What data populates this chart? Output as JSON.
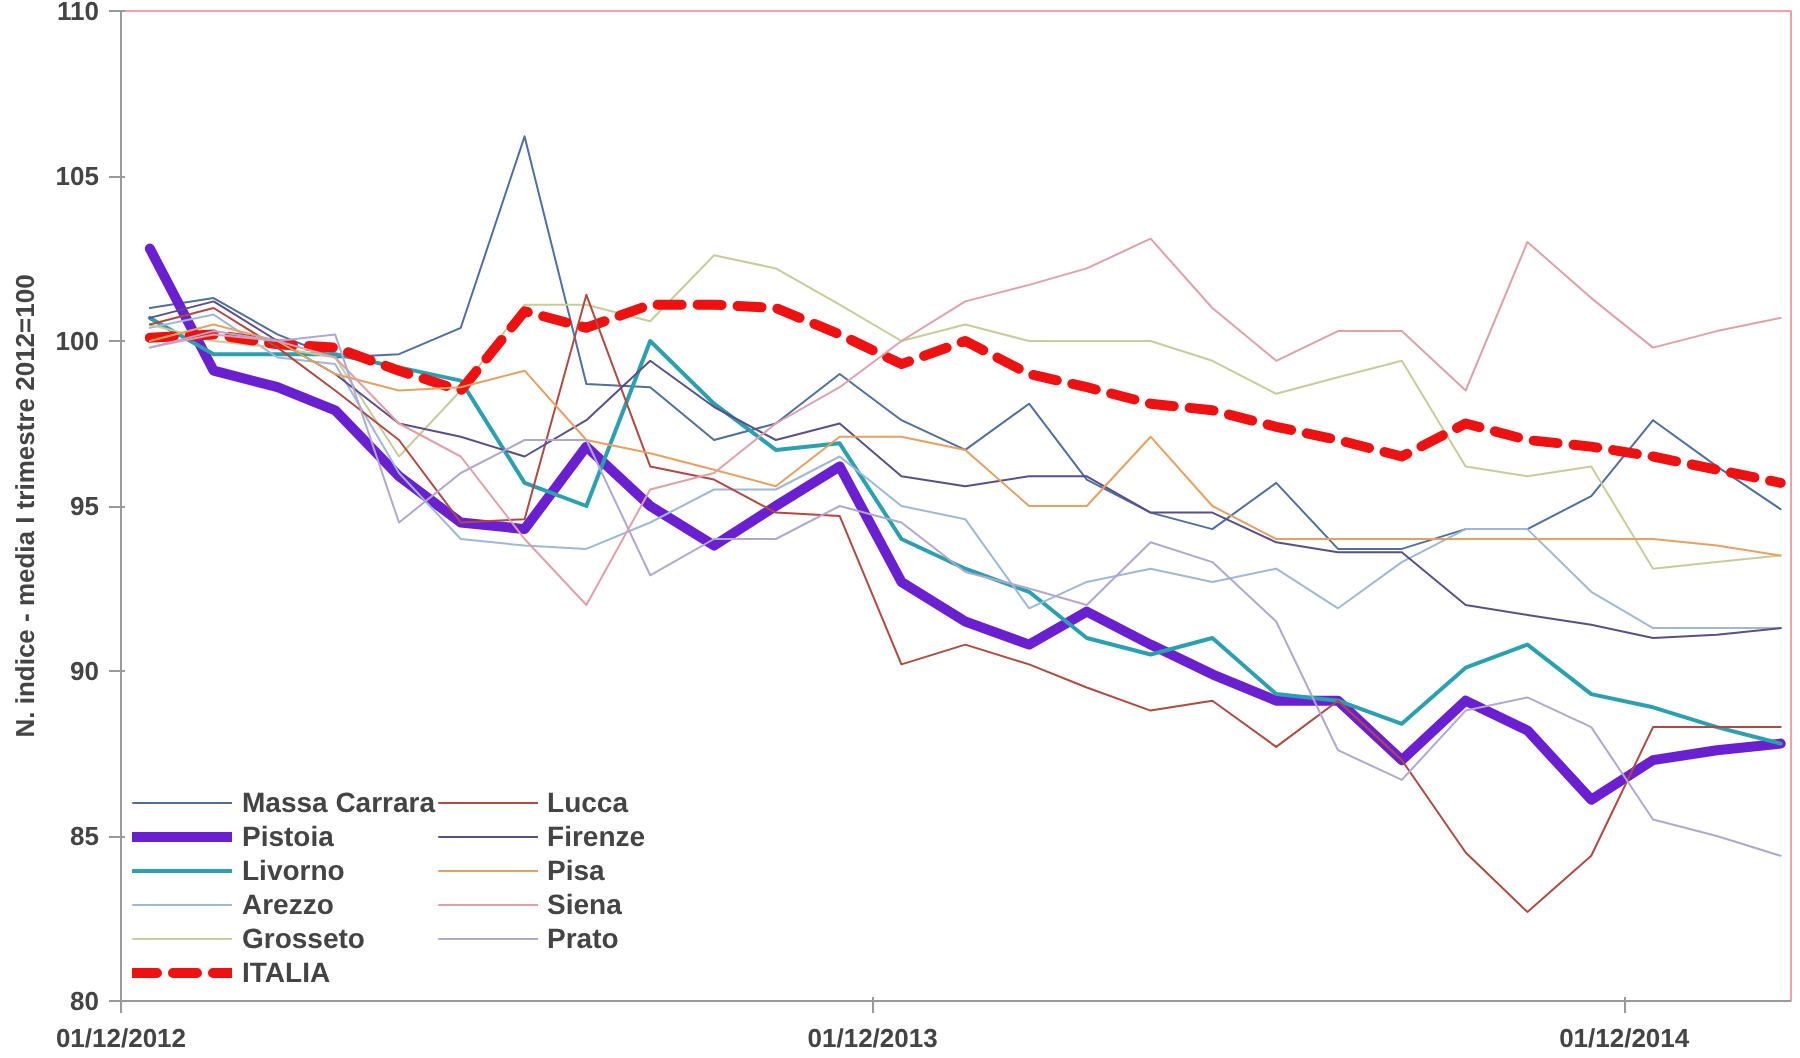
{
  "chart_data": {
    "type": "line",
    "ylabel": "N. indice - media I trimestre 2012=100",
    "x": [
      "2012-12-15",
      "2013-01-15",
      "2013-02-15",
      "2013-03-15",
      "2013-04-15",
      "2013-05-15",
      "2013-06-15",
      "2013-07-15",
      "2013-08-15",
      "2013-09-15",
      "2013-10-15",
      "2013-11-15",
      "2013-12-15",
      "2014-01-15",
      "2014-02-15",
      "2014-03-15",
      "2014-04-15",
      "2014-05-15",
      "2014-06-15",
      "2014-07-15",
      "2014-08-15",
      "2014-09-15",
      "2014-10-15",
      "2014-11-15",
      "2014-12-15",
      "2015-01-15",
      "2015-02-15"
    ],
    "xlim": [
      "2012-12-01",
      "2015-02-20"
    ],
    "xticks": [
      {
        "value": "2012-12-01",
        "label": "01/12/2012"
      },
      {
        "value": "2013-12-01",
        "label": "01/12/2013"
      },
      {
        "value": "2014-12-01",
        "label": "01/12/2014"
      }
    ],
    "ylim": [
      80,
      110
    ],
    "yticks": [
      80,
      85,
      90,
      95,
      100,
      105,
      110
    ],
    "grid": false,
    "legend": "bottom left",
    "marker": "none",
    "line_style": "solid",
    "series": [
      {
        "name": "Massa Carrara",
        "color": "#4f6fa0",
        "values": [
          101.0,
          101.3,
          100.2,
          99.5,
          99.6,
          100.4,
          106.2,
          98.7,
          98.6,
          97.0,
          97.5,
          99.0,
          97.6,
          96.7,
          98.1,
          95.8,
          94.8,
          94.3,
          95.7,
          93.7,
          93.7,
          94.3,
          94.3,
          95.3,
          97.6,
          96.2,
          94.9
        ]
      },
      {
        "name": "Pistoia",
        "color": "#6a1fd0",
        "values": [
          102.8,
          99.1,
          98.6,
          97.9,
          95.9,
          94.5,
          94.3,
          96.8,
          95.0,
          93.8,
          95.0,
          96.2,
          92.7,
          91.5,
          90.8,
          91.8,
          90.8,
          89.9,
          89.1,
          89.1,
          87.3,
          89.1,
          88.2,
          86.1,
          87.3,
          87.6,
          87.8
        ]
      },
      {
        "name": "Livorno",
        "color": "#2aa0b0",
        "values": [
          100.7,
          99.6,
          99.6,
          99.6,
          99.2,
          98.8,
          95.7,
          95.0,
          100.0,
          98.1,
          96.7,
          96.9,
          94.0,
          93.1,
          92.4,
          91.0,
          90.5,
          91.0,
          89.3,
          89.1,
          88.4,
          90.1,
          90.8,
          89.3,
          88.9,
          88.3,
          87.8
        ]
      },
      {
        "name": "Arezzo",
        "color": "#9fb8d8",
        "values": [
          100.4,
          100.8,
          99.5,
          99.3,
          96.0,
          94.0,
          93.8,
          93.7,
          94.5,
          95.5,
          95.5,
          96.5,
          95.0,
          94.6,
          91.9,
          92.7,
          93.1,
          92.7,
          93.1,
          91.9,
          93.3,
          94.3,
          94.3,
          92.4,
          91.3,
          91.3,
          91.3
        ]
      },
      {
        "name": "Grosseto",
        "color": "#c8cc98",
        "values": [
          100.5,
          100.0,
          99.8,
          99.5,
          96.5,
          98.5,
          101.1,
          101.1,
          100.6,
          102.6,
          102.2,
          101.1,
          100.0,
          100.5,
          100.0,
          100.0,
          100.0,
          99.4,
          98.4,
          98.9,
          99.4,
          96.2,
          95.9,
          96.2,
          93.1,
          93.3,
          93.5
        ]
      },
      {
        "name": "ITALIA",
        "color": "#ee1111",
        "line_style": "dashed",
        "values": [
          100.1,
          100.2,
          99.9,
          99.8,
          99.1,
          98.5,
          100.9,
          100.4,
          101.1,
          101.1,
          101.0,
          100.2,
          99.3,
          100.0,
          99.0,
          98.6,
          98.1,
          97.9,
          97.4,
          97.0,
          96.5,
          97.5,
          97.0,
          96.8,
          96.5,
          96.1,
          95.7
        ]
      },
      {
        "name": "Lucca",
        "color": "#b04a40",
        "values": [
          100.5,
          101.0,
          99.8,
          98.5,
          97.0,
          94.5,
          94.6,
          101.4,
          96.2,
          95.8,
          94.8,
          94.7,
          90.2,
          90.8,
          90.2,
          89.5,
          88.8,
          89.1,
          87.7,
          89.1,
          87.3,
          84.5,
          82.7,
          84.4,
          88.3,
          88.3,
          88.3
        ]
      },
      {
        "name": "Firenze",
        "color": "#5a4f8a",
        "values": [
          100.7,
          101.2,
          100.0,
          99.0,
          97.5,
          97.1,
          96.5,
          97.6,
          99.4,
          98.0,
          97.0,
          97.5,
          95.9,
          95.6,
          95.9,
          95.9,
          94.8,
          94.8,
          93.9,
          93.6,
          93.6,
          92.0,
          91.7,
          91.4,
          91.0,
          91.1,
          91.3
        ]
      },
      {
        "name": "Pisa",
        "color": "#e8a060",
        "values": [
          100.0,
          100.5,
          100.0,
          99.0,
          98.5,
          98.6,
          99.1,
          97.0,
          96.6,
          96.1,
          95.6,
          97.1,
          97.1,
          96.7,
          95.0,
          95.0,
          97.1,
          95.0,
          94.0,
          94.0,
          94.0,
          94.0,
          94.0,
          94.0,
          94.0,
          93.8,
          93.5
        ]
      },
      {
        "name": "Siena",
        "color": "#e0a0a8",
        "values": [
          99.8,
          100.2,
          100.0,
          99.5,
          97.5,
          96.5,
          94.0,
          92.0,
          95.5,
          96.0,
          97.5,
          98.6,
          100.0,
          101.2,
          101.7,
          102.2,
          103.1,
          101.0,
          99.4,
          100.3,
          100.3,
          98.5,
          103.0,
          101.3,
          99.8,
          100.3,
          100.7
        ]
      },
      {
        "name": "Prato",
        "color": "#b0a8d0",
        "values": [
          99.8,
          100.3,
          100.0,
          100.2,
          94.5,
          96.0,
          97.0,
          97.0,
          92.9,
          94.0,
          94.0,
          95.0,
          94.5,
          93.0,
          92.5,
          92.0,
          93.9,
          93.3,
          91.5,
          87.6,
          86.7,
          88.8,
          89.2,
          88.3,
          85.5,
          85.0,
          84.4
        ]
      }
    ]
  }
}
